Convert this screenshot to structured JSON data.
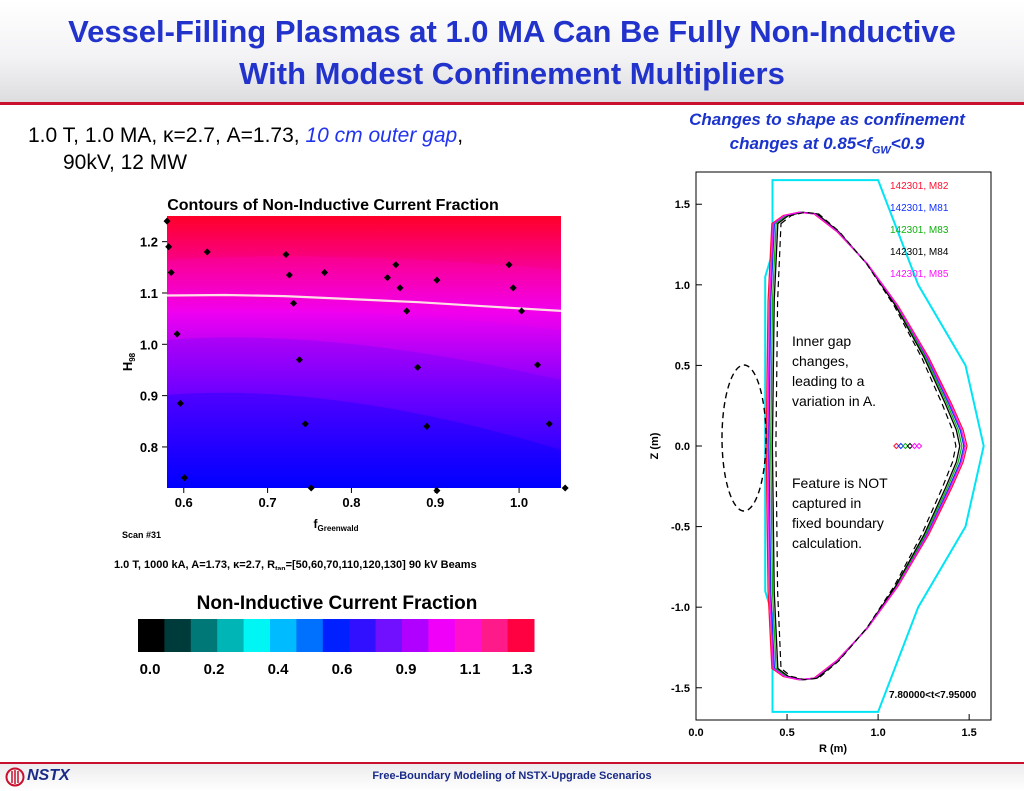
{
  "header": {
    "title_line1": "Vessel-Filling Plasmas at 1.0 MA Can Be Fully Non-Inductive",
    "title_line2": "With Modest Confinement Multipliers"
  },
  "left_panel": {
    "params_prefix": "1.0 T, 1.0 MA, ",
    "kappa_symbol": "κ",
    "params_mid": "=2.7, A=1.73, ",
    "params_italic": "10 cm outer gap",
    "params_comma": ",",
    "params_line2": "90kV, 12 MW"
  },
  "right_caption": {
    "line1": "Changes to shape as confinement",
    "line2_prefix": "changes at 0.85<f",
    "line2_sub": "GW",
    "line2_suffix": "<0.9"
  },
  "colorbar": {
    "title": "Non-Inductive Current Fraction",
    "colors": [
      "#000000",
      "#003b3b",
      "#007878",
      "#00b5b5",
      "#00f5f5",
      "#00bbff",
      "#0070ff",
      "#0020ff",
      "#3010ff",
      "#7010ff",
      "#b000ff",
      "#f000f8",
      "#ff10cc",
      "#ff1a8a",
      "#ff0040"
    ],
    "tick_labels": [
      "0.0",
      "0.2",
      "0.4",
      "0.6",
      "0.9",
      "1.1",
      "1.3"
    ]
  },
  "footer": {
    "logo_text": "NSTX",
    "center_text": "Free-Boundary Modeling of NSTX-Upgrade Scenarios"
  },
  "chart_data": [
    {
      "type": "heatmap",
      "title": "Contours of Non-Inductive Current Fraction",
      "xlabel": "f",
      "xlabel_sub": "Greenwald",
      "ylabel": "H",
      "ylabel_sub": "98",
      "xlim": [
        0.58,
        1.05
      ],
      "ylim": [
        0.72,
        1.25
      ],
      "xticks": [
        "0.6",
        "0.7",
        "0.8",
        "0.9",
        "1.0"
      ],
      "yticks": [
        "0.8",
        "0.9",
        "1.0",
        "1.1",
        "1.2"
      ],
      "scan_label": "Scan #31",
      "caption_parts": [
        "1.0 T, 1000 kA, A=1.73, ",
        "κ",
        "=2.7, R",
        "tan",
        "=[50,60,70,110,120,130] 90 kV Beams"
      ],
      "contour_line": {
        "label": "NI fraction = 1.0",
        "x": [
          0.58,
          0.65,
          0.72,
          0.8,
          0.88,
          0.95,
          1.05
        ],
        "y": [
          1.095,
          1.096,
          1.094,
          1.088,
          1.082,
          1.075,
          1.065
        ]
      },
      "points": [
        [
          0.58,
          1.24
        ],
        [
          0.582,
          1.19
        ],
        [
          0.585,
          1.14
        ],
        [
          0.592,
          1.02
        ],
        [
          0.596,
          0.885
        ],
        [
          0.601,
          0.74
        ],
        [
          0.628,
          1.18
        ],
        [
          0.722,
          1.175
        ],
        [
          0.726,
          1.135
        ],
        [
          0.731,
          1.08
        ],
        [
          0.738,
          0.97
        ],
        [
          0.745,
          0.845
        ],
        [
          0.752,
          0.72
        ],
        [
          0.768,
          1.14
        ],
        [
          0.843,
          1.13
        ],
        [
          0.853,
          1.155
        ],
        [
          0.858,
          1.11
        ],
        [
          0.866,
          1.065
        ],
        [
          0.879,
          0.955
        ],
        [
          0.89,
          0.84
        ],
        [
          0.902,
          1.125
        ],
        [
          0.902,
          0.715
        ],
        [
          0.988,
          1.155
        ],
        [
          0.993,
          1.11
        ],
        [
          1.003,
          1.065
        ],
        [
          1.022,
          0.96
        ],
        [
          1.036,
          0.845
        ],
        [
          1.055,
          0.72
        ]
      ]
    },
    {
      "type": "line",
      "xlabel": "R (m)",
      "ylabel": "Z (m)",
      "xlim": [
        0.0,
        1.62
      ],
      "ylim": [
        -1.7,
        1.7
      ],
      "xticks": [
        "0.0",
        "0.5",
        "1.0",
        "1.5"
      ],
      "yticks": [
        "1.5",
        "1.0",
        "0.5",
        "0.0",
        "-0.5",
        "-1.0",
        "-1.5"
      ],
      "time_label": "7.80000<t<7.95000",
      "wall": {
        "name": "vessel",
        "color": "#00e5f5",
        "R": [
          0.42,
          1.0,
          1.22,
          1.48,
          1.58,
          1.48,
          1.22,
          1.0,
          0.42,
          0.42,
          0.38,
          0.38,
          0.42,
          0.42
        ],
        "Z": [
          1.65,
          1.65,
          1.0,
          0.5,
          0.0,
          -0.5,
          -1.0,
          -1.65,
          -1.65,
          -1.05,
          -0.9,
          1.05,
          1.2,
          1.65
        ]
      },
      "series": [
        {
          "name": "142301, M82",
          "color": "#ff1030",
          "shift": 0.03
        },
        {
          "name": "142301, M81",
          "color": "#1030ff",
          "shift": 0.012
        },
        {
          "name": "142301, M83",
          "color": "#10b010",
          "shift": 0.0
        },
        {
          "name": "142301, M84",
          "color": "#000000",
          "shift": -0.012
        },
        {
          "name": "142301, M85",
          "color": "#ff10ff",
          "shift": 0.02
        }
      ],
      "boundary_shape": {
        "R": [
          0.44,
          0.5,
          0.58,
          0.66,
          0.78,
          0.94,
          1.1,
          1.26,
          1.38,
          1.44,
          1.46,
          1.44,
          1.38,
          1.26,
          1.1,
          0.94,
          0.78,
          0.66,
          0.58,
          0.5,
          0.44,
          0.42,
          0.41,
          0.42,
          0.44
        ],
        "Z": [
          1.38,
          1.43,
          1.45,
          1.44,
          1.33,
          1.13,
          0.87,
          0.55,
          0.26,
          0.1,
          0.0,
          -0.1,
          -0.26,
          -0.55,
          -0.87,
          -1.13,
          -1.33,
          -1.44,
          -1.45,
          -1.43,
          -1.38,
          -0.9,
          0.0,
          0.9,
          1.38
        ]
      },
      "axis_markers": {
        "R": [
          1.1,
          1.125,
          1.15,
          1.175,
          1.2,
          1.225
        ],
        "Z": 0.0,
        "colors": [
          "#ff1030",
          "#1030ff",
          "#10b010",
          "#000000",
          "#ff10ff",
          "#ff10ff"
        ]
      },
      "annotation1": [
        "Inner gap",
        "changes,",
        "leading to a",
        "variation in A."
      ],
      "annotation2": [
        "Feature is NOT",
        "captured in",
        "fixed boundary",
        "calculation."
      ]
    }
  ]
}
